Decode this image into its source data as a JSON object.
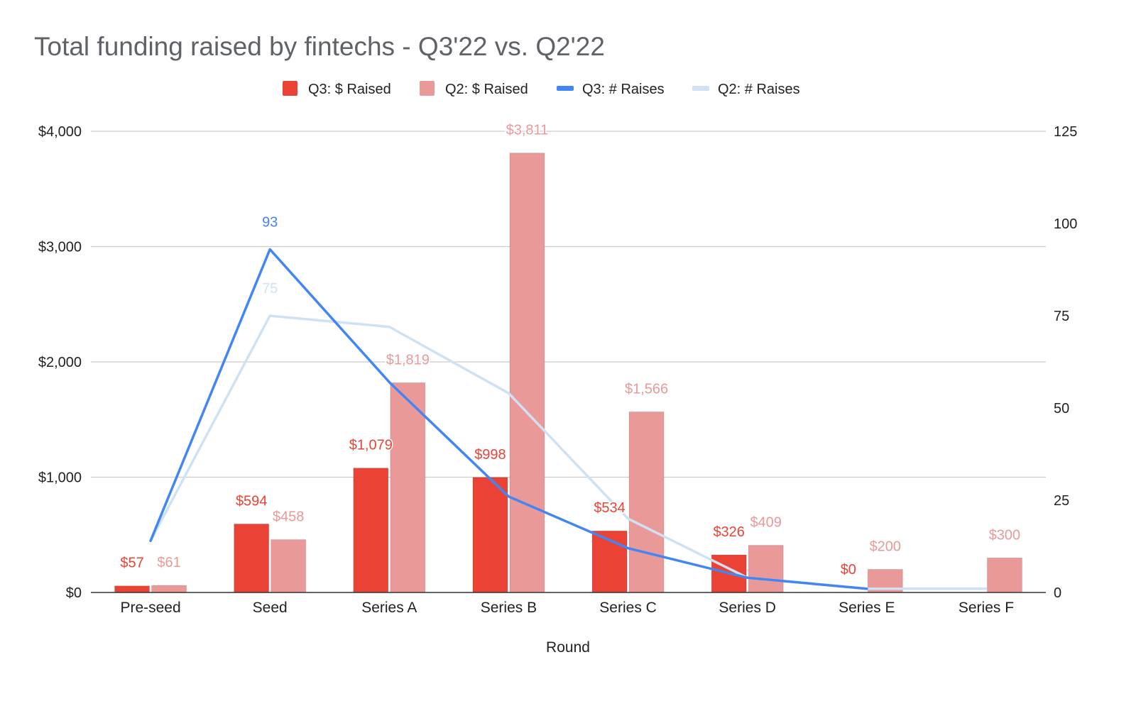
{
  "chart_data": {
    "type": "bar",
    "title": "Total funding raised by fintechs - Q3'22 vs. Q2'22",
    "xlabel": "Round",
    "ylabel": "",
    "ylabel_right": "",
    "categories": [
      "Pre-seed",
      "Seed",
      "Series A",
      "Series B",
      "Series C",
      "Series D",
      "Series E",
      "Series F"
    ],
    "ylim": [
      0,
      4000
    ],
    "yticks": [
      "$0",
      "$1,000",
      "$2,000",
      "$3,000",
      "$4,000"
    ],
    "ylim_right": [
      0,
      125
    ],
    "yticks_right": [
      "0",
      "25",
      "50",
      "75",
      "100",
      "125"
    ],
    "grid": true,
    "legend_position": "top",
    "series": [
      {
        "name": "Q3: $ Raised",
        "kind": "bar",
        "axis": "left",
        "color": "#ea4335",
        "values": [
          57,
          594,
          1079,
          998,
          534,
          326,
          0,
          null
        ],
        "labels": [
          "$57",
          "$594",
          "$1,079",
          "$998",
          "$534",
          "$326",
          "$0",
          ""
        ]
      },
      {
        "name": "Q2: $ Raised",
        "kind": "bar",
        "axis": "left",
        "color": "#ea9999",
        "values": [
          61,
          458,
          1819,
          3811,
          1566,
          409,
          200,
          300
        ],
        "labels": [
          "$61",
          "$458",
          "$1,819",
          "$3,811",
          "$1,566",
          "$409",
          "$200",
          "$300"
        ]
      },
      {
        "name": "Q3: # Raises",
        "kind": "line",
        "axis": "right",
        "color": "#4285f4",
        "values": [
          14,
          93,
          57,
          26,
          12,
          4,
          1,
          null
        ],
        "labels": [
          "",
          "93",
          "",
          "",
          "",
          "",
          "",
          ""
        ]
      },
      {
        "name": "Q2: # Raises",
        "kind": "line",
        "axis": "right",
        "color": "#cfe2f3",
        "values": [
          14,
          75,
          72,
          54,
          20,
          4,
          1,
          1
        ],
        "labels": [
          "",
          "75",
          "",
          "",
          "",
          "",
          "",
          ""
        ]
      }
    ]
  },
  "colors": {
    "title": "#5f6368",
    "axis_text": "#222222",
    "grid": "#cccccc",
    "baseline": "#333333"
  }
}
